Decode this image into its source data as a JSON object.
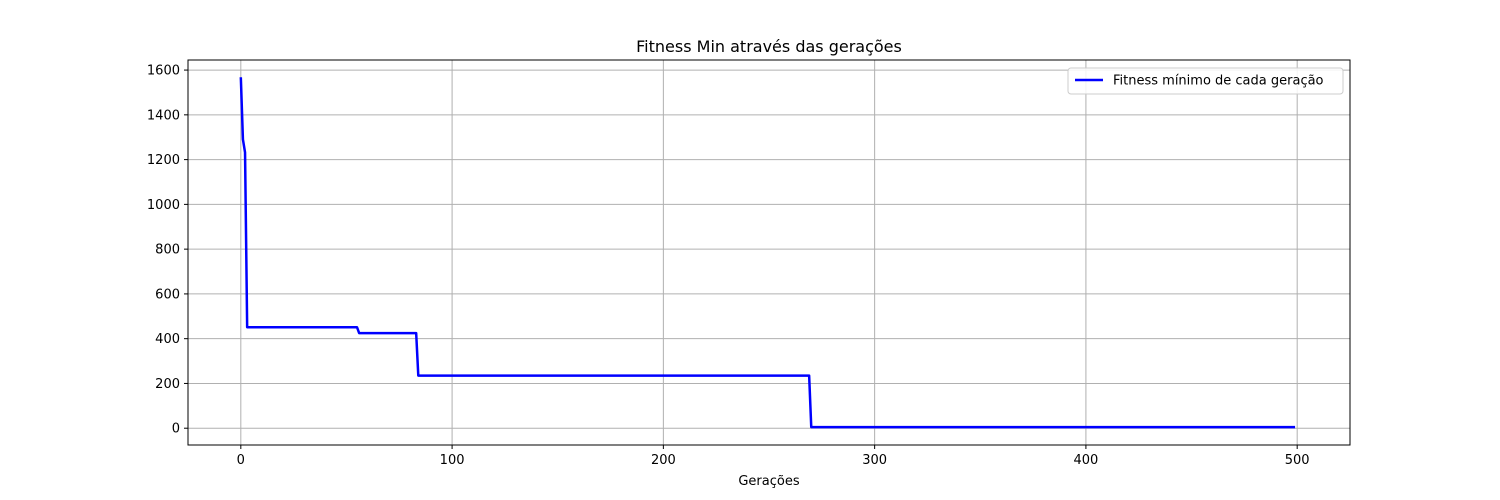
{
  "chart_data": {
    "type": "line",
    "title": "Fitness Min através das gerações",
    "xlabel": "Gerações",
    "ylabel": "",
    "xlim": [
      -25,
      525
    ],
    "ylim": [
      -75,
      1645
    ],
    "xticks": [
      0,
      100,
      200,
      300,
      400,
      500
    ],
    "yticks": [
      0,
      200,
      400,
      600,
      800,
      1000,
      1200,
      1400,
      1600
    ],
    "grid": true,
    "legend_position": "top-right",
    "series": [
      {
        "name": "Fitness mínimo de cada geração",
        "color": "#0000ff",
        "x": [
          0,
          1,
          2,
          3,
          55,
          56,
          83,
          84,
          269,
          270,
          499
        ],
        "y": [
          1568,
          1290,
          1232,
          451,
          451,
          425,
          425,
          235,
          235,
          5,
          5
        ]
      }
    ]
  }
}
